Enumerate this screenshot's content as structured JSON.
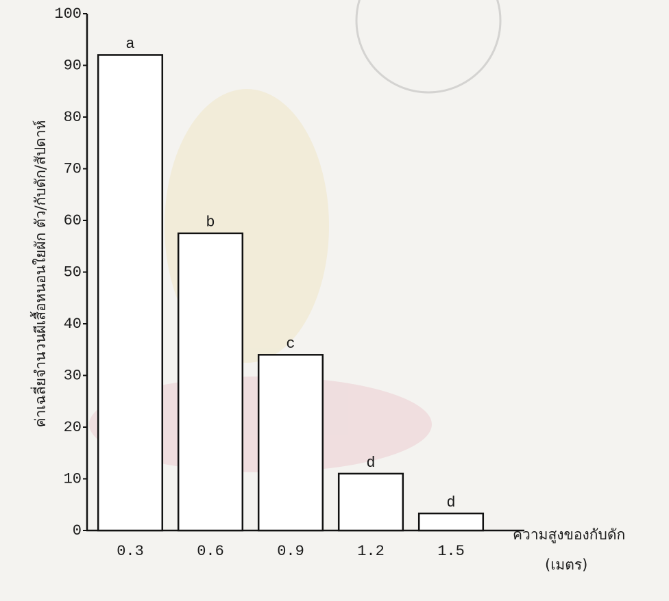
{
  "chart_data": {
    "type": "bar",
    "categories": [
      "0.3",
      "0.6",
      "0.9",
      "1.2",
      "1.5"
    ],
    "values": [
      92,
      57.5,
      34,
      11,
      3.3
    ],
    "annotations": [
      "a",
      "b",
      "c",
      "d",
      "d"
    ],
    "color": "#ffffff",
    "ylim": [
      0,
      100
    ],
    "yticks": [
      0,
      10,
      20,
      30,
      40,
      50,
      60,
      70,
      80,
      90,
      100
    ],
    "ylabel": "ค่าเฉลี่ยจำนวนผีเสื้อหนอนใยผัก ตัว/กับดัก/สัปดาห์",
    "xlabel": "ความสูงของกับดัก",
    "xunit": "(เมตร)",
    "grid": false
  }
}
